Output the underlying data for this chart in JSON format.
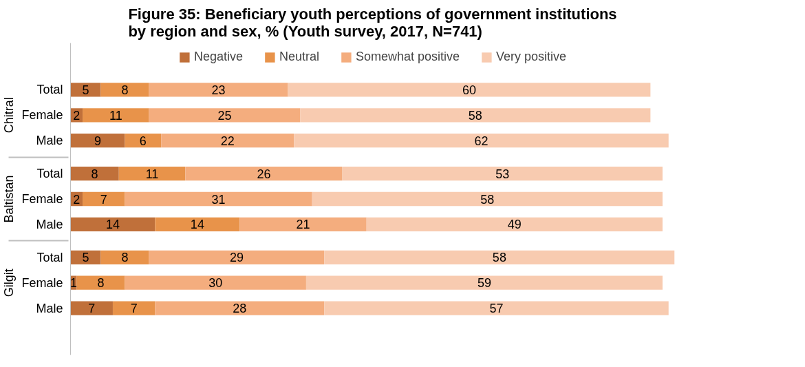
{
  "chart_data": {
    "type": "bar",
    "orientation": "horizontal",
    "stacked": true,
    "data_labels": true,
    "grid": false,
    "legend": "top",
    "title": "Figure 35: Beneficiary youth perceptions of government institutions\nby region and sex, % (Youth survey, 2017, N=741)",
    "categories": [
      "Total",
      "Female",
      "Male",
      "Total",
      "Female",
      "Male",
      "Total",
      "Female",
      "Male"
    ],
    "annotations": [
      "Chitral",
      "Baltistan",
      "Gilgit"
    ],
    "series": [
      {
        "name": "Negative",
        "color": "#c0703a",
        "values": [
          5,
          2,
          9,
          8,
          2,
          14,
          5,
          1,
          7
        ]
      },
      {
        "name": "Neutral",
        "color": "#e8934a",
        "values": [
          8,
          11,
          6,
          11,
          7,
          14,
          8,
          8,
          7
        ]
      },
      {
        "name": "Somewhat positive",
        "color": "#f4ad7e",
        "values": [
          23,
          25,
          22,
          26,
          31,
          21,
          29,
          30,
          28
        ]
      },
      {
        "name": "Very positive",
        "color": "#f8cbb0",
        "values": [
          60,
          58,
          62,
          53,
          58,
          49,
          58,
          59,
          57
        ]
      }
    ]
  }
}
